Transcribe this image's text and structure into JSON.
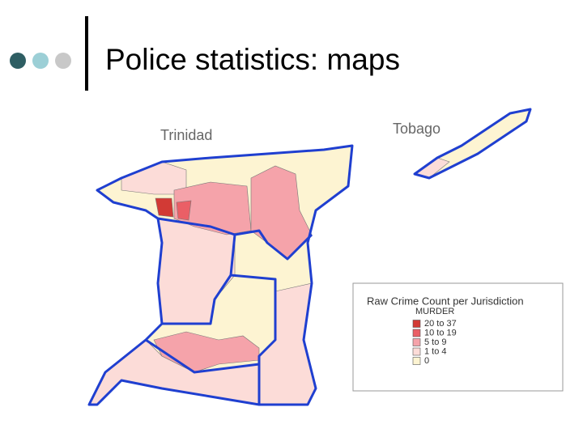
{
  "header": {
    "title": "Police statistics: maps"
  },
  "map": {
    "labels": [
      "Trinidad",
      "Tobago"
    ],
    "legend": {
      "title": "Raw Crime Count per Jurisdiction",
      "subtitle": "MURDER",
      "items": [
        {
          "label": "20 to 37",
          "color": "#d23a35"
        },
        {
          "label": "10 to 19",
          "color": "#ea5f66"
        },
        {
          "label": "5 to  9",
          "color": "#f5a3aa"
        },
        {
          "label": "1 to  4",
          "color": "#fcdcd8"
        },
        {
          "label": "0",
          "color": "#fdf4d2"
        }
      ]
    }
  }
}
